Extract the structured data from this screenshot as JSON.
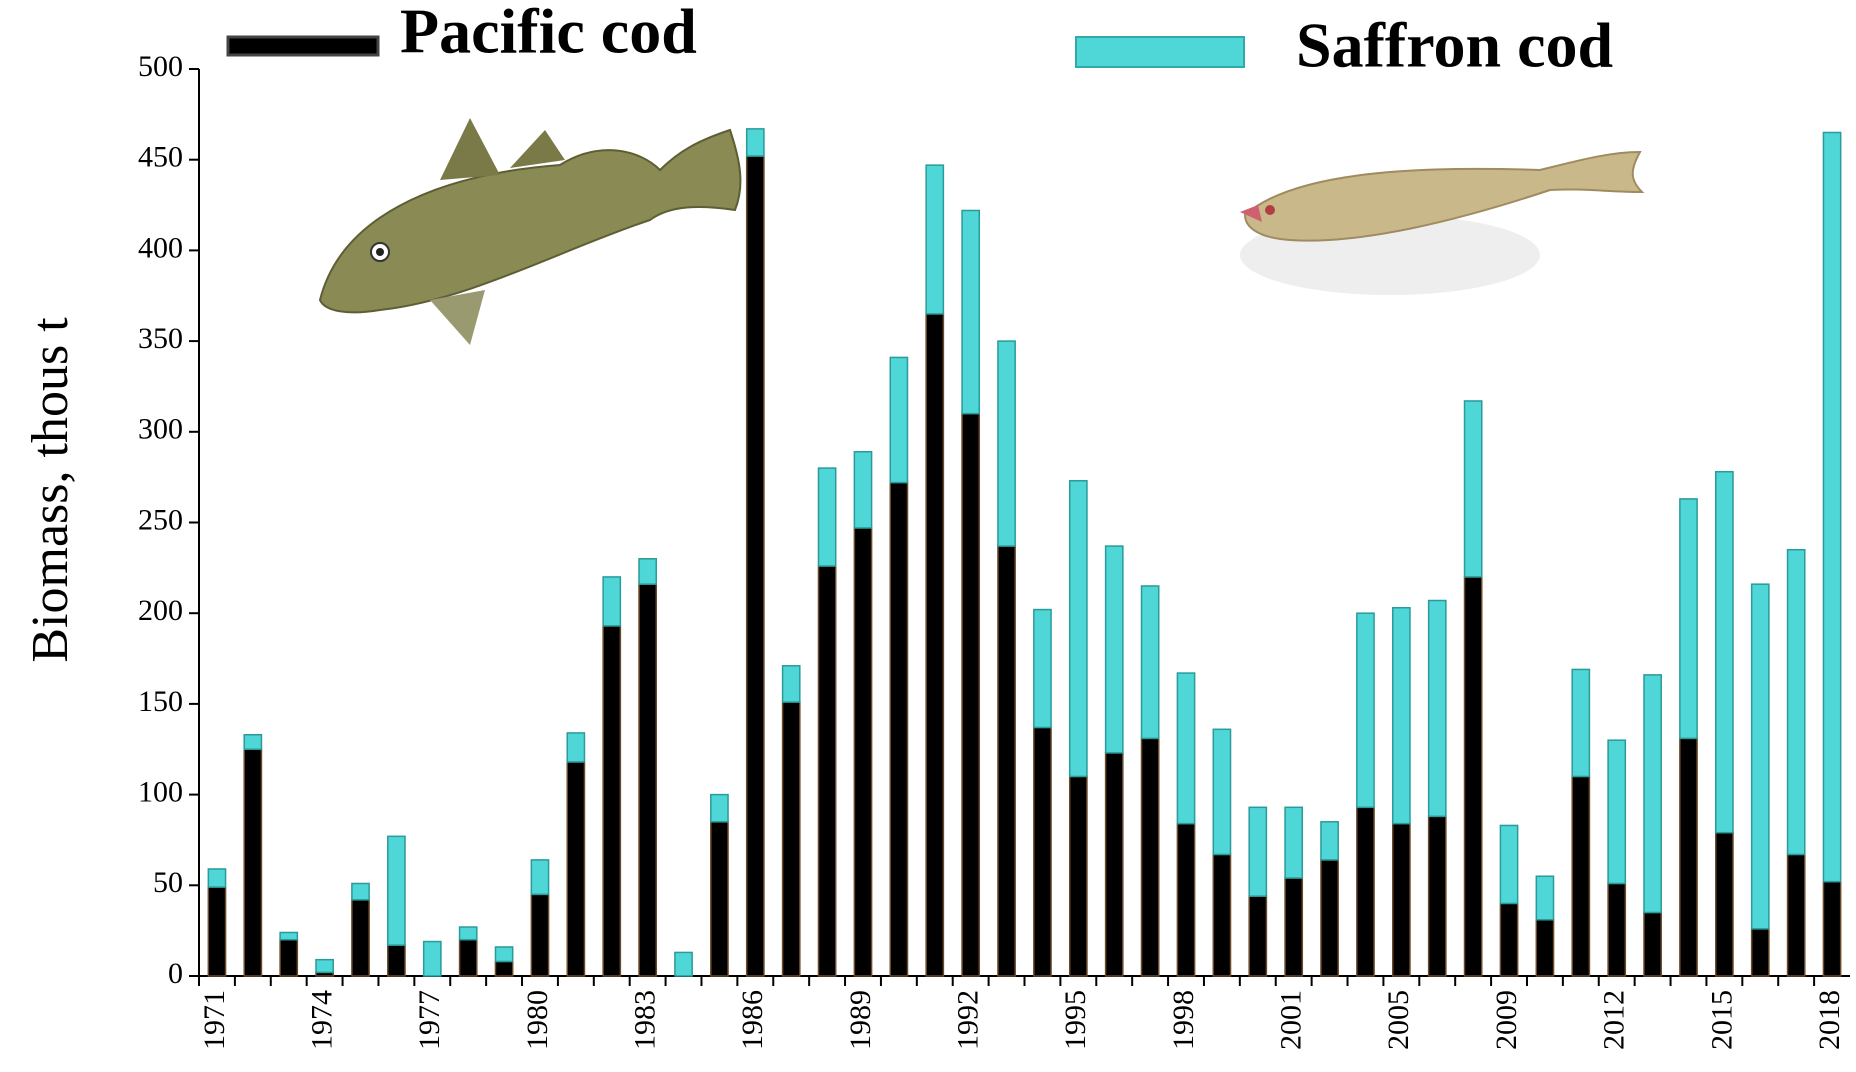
{
  "chart_data": {
    "type": "stacked-bar",
    "y_label": "Biomass, thous t",
    "categories": [
      "1971",
      null,
      null,
      "1974",
      null,
      null,
      "1977",
      null,
      null,
      "1980",
      null,
      null,
      "1983",
      null,
      null,
      "1986",
      null,
      null,
      "1989",
      null,
      null,
      "1992",
      null,
      null,
      "1995",
      null,
      null,
      "1998",
      null,
      null,
      "2001",
      null,
      null,
      "2005",
      null,
      null,
      "2009",
      null,
      null,
      "2012",
      null,
      null,
      "2015",
      null,
      null,
      "2018"
    ],
    "series": [
      {
        "name": "Pacific cod",
        "color": "#000000",
        "values": [
          49,
          125,
          20,
          2,
          42,
          17,
          0,
          20,
          8,
          45,
          118,
          193,
          216,
          0,
          85,
          452,
          151,
          226,
          247,
          272,
          365,
          310,
          237,
          137,
          110,
          123,
          131,
          84,
          67,
          44,
          54,
          64,
          93,
          84,
          88,
          220,
          40,
          31,
          110,
          51,
          35,
          131,
          79,
          26,
          67,
          52
        ]
      },
      {
        "name": "Saffron cod",
        "color": "#4fd6d6",
        "values": [
          10,
          8,
          4,
          7,
          9,
          60,
          19,
          7,
          8,
          19,
          16,
          27,
          14,
          13,
          15,
          15,
          20,
          54,
          42,
          69,
          82,
          112,
          113,
          65,
          163,
          114,
          84,
          83,
          69,
          49,
          39,
          21,
          107,
          119,
          119,
          97,
          43,
          24,
          59,
          79,
          131,
          132,
          199,
          190,
          168,
          413
        ]
      }
    ],
    "ylim": [
      0,
      500
    ],
    "yticks": [
      0,
      50,
      100,
      150,
      200,
      250,
      300,
      350,
      400,
      450,
      500
    ],
    "grid": false
  }
}
